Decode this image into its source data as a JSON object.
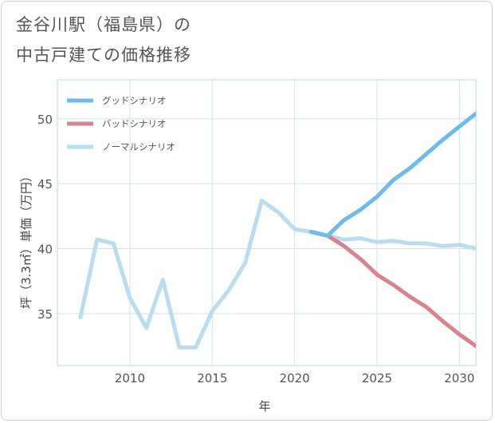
{
  "title": "金谷川駅（福島県）の\n中古戸建ての価格推移",
  "chart_data": {
    "type": "line",
    "xlabel": "年",
    "ylabel": "坪（3.3㎡）単価（万円）",
    "xlim": [
      2005.6,
      2031
    ],
    "ylim": [
      31,
      53
    ],
    "xticks": [
      2010,
      2015,
      2020,
      2025,
      2030
    ],
    "yticks": [
      35,
      40,
      45,
      50
    ],
    "legend_position": "top-left",
    "series": [
      {
        "name": "グッドシナリオ",
        "color": "#6dbbea",
        "x": [
          2021,
          2022,
          2023,
          2024,
          2025,
          2026,
          2027,
          2028,
          2029,
          2030,
          2031
        ],
        "y": [
          41.3,
          41.0,
          42.2,
          43.0,
          44.0,
          45.3,
          46.2,
          47.3,
          48.4,
          49.4,
          50.4
        ]
      },
      {
        "name": "バッドシナリオ",
        "color": "#d9838c",
        "x": [
          2021,
          2022,
          2023,
          2024,
          2025,
          2026,
          2027,
          2028,
          2029,
          2030,
          2031
        ],
        "y": [
          41.3,
          41.0,
          40.2,
          39.2,
          38.0,
          37.2,
          36.3,
          35.5,
          34.4,
          33.4,
          32.5
        ]
      },
      {
        "name": "ノーマルシナリオ",
        "color": "#b9dcee",
        "x": [
          2007,
          2008,
          2009,
          2010,
          2011,
          2012,
          2013,
          2014,
          2015,
          2016,
          2017,
          2018,
          2019,
          2020,
          2021,
          2022,
          2023,
          2024,
          2025,
          2026,
          2027,
          2028,
          2029,
          2030,
          2031
        ],
        "y": [
          34.7,
          40.7,
          40.4,
          36.2,
          33.9,
          37.6,
          32.4,
          32.4,
          35.2,
          36.8,
          38.9,
          43.7,
          42.8,
          41.5,
          41.3,
          41.0,
          40.7,
          40.8,
          40.5,
          40.6,
          40.4,
          40.4,
          40.2,
          40.3,
          40.0
        ]
      }
    ]
  }
}
